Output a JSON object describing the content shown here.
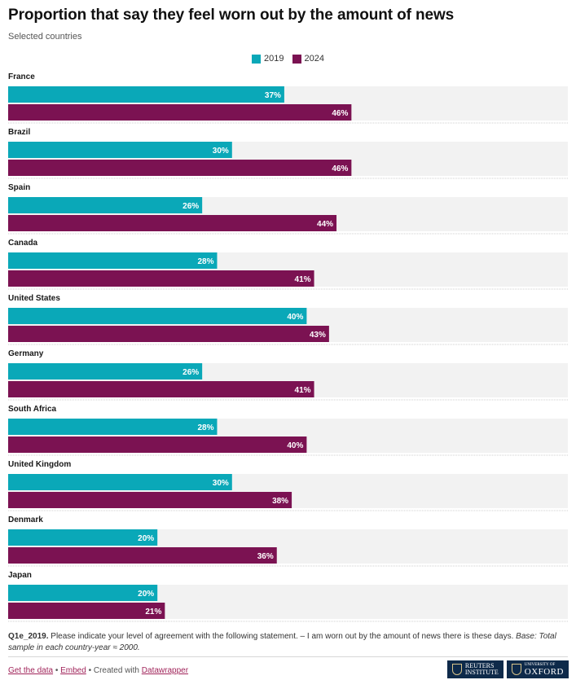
{
  "header": {
    "title": "Proportion that say they feel worn out by the amount of news",
    "subtitle": "Selected countries"
  },
  "legend": [
    {
      "label": "2019",
      "color": "#0aa8b8"
    },
    {
      "label": "2024",
      "color": "#7b1252"
    }
  ],
  "chart_data": {
    "type": "bar",
    "orientation": "horizontal",
    "categories": [
      "France",
      "Brazil",
      "Spain",
      "Canada",
      "United States",
      "Germany",
      "South Africa",
      "United Kingdom",
      "Denmark",
      "Japan"
    ],
    "series": [
      {
        "name": "2019",
        "color": "#0aa8b8",
        "values": [
          37,
          30,
          26,
          28,
          40,
          26,
          28,
          30,
          20,
          20
        ]
      },
      {
        "name": "2024",
        "color": "#7b1252",
        "values": [
          46,
          46,
          44,
          41,
          43,
          41,
          40,
          38,
          36,
          21
        ]
      }
    ],
    "value_suffix": "%",
    "xlim": [
      0,
      75
    ],
    "background_color": "#f2f2f2",
    "legend_position": "top-center",
    "grid": false
  },
  "notes": {
    "question_id": "Q1e_2019.",
    "question_text": "Please indicate your level of agreement with the following statement. – I am worn out by the amount of news there is these days.",
    "base_label": "Base:",
    "base_text": "Total sample in each country-year ≈ 2000."
  },
  "footer": {
    "get_data": "Get the data",
    "separator1": " • ",
    "embed": "Embed",
    "created_with": " • Created with ",
    "datawrapper": "Datawrapper"
  },
  "logos": {
    "reuters_line1": "REUTERS",
    "reuters_line2": "INSTITUTE",
    "oxford_small": "UNIVERSITY OF",
    "oxford_big": "OXFORD"
  }
}
